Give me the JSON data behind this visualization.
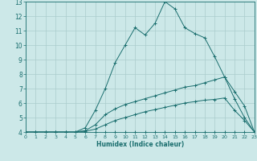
{
  "xlabel": "Humidex (Indice chaleur)",
  "xlim": [
    0,
    23
  ],
  "ylim": [
    4,
    13
  ],
  "xticks": [
    0,
    1,
    2,
    3,
    4,
    5,
    6,
    7,
    8,
    9,
    10,
    11,
    12,
    13,
    14,
    15,
    16,
    17,
    18,
    19,
    20,
    21,
    22,
    23
  ],
  "yticks": [
    4,
    5,
    6,
    7,
    8,
    9,
    10,
    11,
    12,
    13
  ],
  "background_color": "#cce8e8",
  "line_color": "#1a6e6e",
  "grid_color": "#aacccc",
  "series": [
    {
      "x": [
        0,
        1,
        2,
        3,
        4,
        5,
        6,
        7,
        8,
        9,
        10,
        11,
        12,
        13,
        14,
        15,
        16,
        17,
        18,
        19,
        20,
        21,
        22,
        23
      ],
      "y": [
        4,
        4,
        4,
        4,
        4,
        4,
        4,
        4,
        4,
        4,
        4,
        4,
        4,
        4,
        4,
        4,
        4,
        4,
        4,
        4,
        4,
        4,
        4,
        4
      ]
    },
    {
      "x": [
        0,
        1,
        2,
        3,
        4,
        5,
        6,
        7,
        8,
        9,
        10,
        11,
        12,
        13,
        14,
        15,
        16,
        17,
        18,
        19,
        20,
        21,
        22,
        23
      ],
      "y": [
        4,
        4,
        4,
        4,
        4,
        4,
        4.3,
        5.5,
        7,
        8.8,
        10,
        11.2,
        10.7,
        11.5,
        13,
        12.5,
        11.2,
        10.8,
        10.5,
        9.2,
        7.8,
        6.8,
        5.8,
        4
      ]
    },
    {
      "x": [
        0,
        1,
        2,
        3,
        4,
        5,
        6,
        7,
        8,
        9,
        10,
        11,
        12,
        13,
        14,
        15,
        16,
        17,
        18,
        19,
        20,
        21,
        22,
        23
      ],
      "y": [
        4,
        4,
        4,
        4,
        4,
        4,
        4.1,
        4.5,
        5.2,
        5.6,
        5.9,
        6.1,
        6.3,
        6.5,
        6.7,
        6.9,
        7.1,
        7.2,
        7.4,
        7.6,
        7.8,
        6.3,
        5.0,
        4
      ]
    },
    {
      "x": [
        0,
        1,
        2,
        3,
        4,
        5,
        6,
        7,
        8,
        9,
        10,
        11,
        12,
        13,
        14,
        15,
        16,
        17,
        18,
        19,
        20,
        21,
        22,
        23
      ],
      "y": [
        4,
        4,
        4,
        4,
        4,
        4,
        4.05,
        4.2,
        4.5,
        4.8,
        5.0,
        5.2,
        5.4,
        5.55,
        5.7,
        5.85,
        6.0,
        6.1,
        6.2,
        6.25,
        6.35,
        5.5,
        4.8,
        4
      ]
    }
  ]
}
